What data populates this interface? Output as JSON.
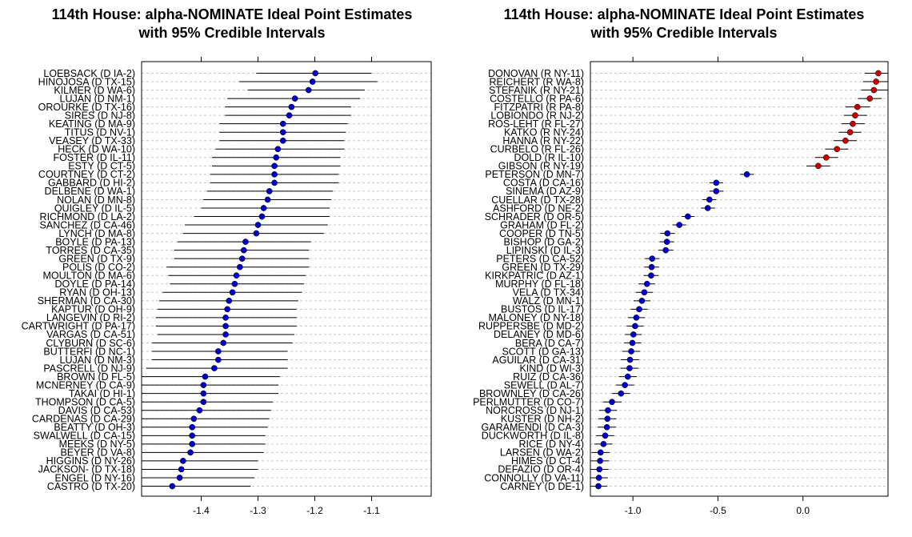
{
  "chart_data": [
    {
      "type": "scatter",
      "title_line1": "114th House: alpha-NOMINATE Ideal Point Estimates",
      "title_line2": "with 95% Credible Intervals",
      "xlim": [
        -1.505,
        -0.995
      ],
      "xticks": [
        -1.4,
        -1.3,
        -1.2,
        -1.1
      ],
      "xtick_labels": [
        "-1.4",
        "-1.3",
        "-1.2",
        "-1.1"
      ],
      "grid": "dashed horizontal",
      "points": [
        {
          "label": "LOEBSACK (D IA-2)",
          "est": -1.199,
          "lo": -1.303,
          "hi": -1.1,
          "party": "D"
        },
        {
          "label": "HINOJOSA (D TX-15)",
          "est": -1.204,
          "lo": -1.333,
          "hi": -1.09,
          "party": "D"
        },
        {
          "label": "KILMER (D WA-6)",
          "est": -1.211,
          "lo": -1.318,
          "hi": -1.112,
          "party": "D"
        },
        {
          "label": "LUJAN (D NM-1)",
          "est": -1.235,
          "lo": -1.354,
          "hi": -1.12,
          "party": "D"
        },
        {
          "label": "OROURKE (D TX-16)",
          "est": -1.241,
          "lo": -1.358,
          "hi": -1.136,
          "party": "D"
        },
        {
          "label": "SIRES (D NJ-8)",
          "est": -1.245,
          "lo": -1.358,
          "hi": -1.136,
          "party": "D"
        },
        {
          "label": "KEATING (D MA-9)",
          "est": -1.256,
          "lo": -1.368,
          "hi": -1.142,
          "party": "D"
        },
        {
          "label": "TITUS (D NV-1)",
          "est": -1.256,
          "lo": -1.368,
          "hi": -1.145,
          "party": "D"
        },
        {
          "label": "VEASEY (D TX-33)",
          "est": -1.256,
          "lo": -1.368,
          "hi": -1.148,
          "party": "D"
        },
        {
          "label": "HECK (D WA-10)",
          "est": -1.265,
          "lo": -1.375,
          "hi": -1.148,
          "party": "D"
        },
        {
          "label": "FOSTER (D IL-11)",
          "est": -1.268,
          "lo": -1.381,
          "hi": -1.155,
          "party": "D"
        },
        {
          "label": "ESTY (D CT-5)",
          "est": -1.271,
          "lo": -1.381,
          "hi": -1.155,
          "party": "D"
        },
        {
          "label": "COURTNEY (D CT-2)",
          "est": -1.271,
          "lo": -1.384,
          "hi": -1.158,
          "party": "D"
        },
        {
          "label": "GABBARD (D HI-2)",
          "est": -1.271,
          "lo": -1.384,
          "hi": -1.158,
          "party": "D"
        },
        {
          "label": "DELBENE (D WA-1)",
          "est": -1.28,
          "lo": -1.39,
          "hi": -1.168,
          "party": "D"
        },
        {
          "label": "NOLAN (D MN-8)",
          "est": -1.283,
          "lo": -1.397,
          "hi": -1.171,
          "party": "D"
        },
        {
          "label": "QUIGLEY (D IL-5)",
          "est": -1.29,
          "lo": -1.4,
          "hi": -1.174,
          "party": "D"
        },
        {
          "label": "RICHMOND (D LA-2)",
          "est": -1.293,
          "lo": -1.413,
          "hi": -1.174,
          "party": "D"
        },
        {
          "label": "SANCHEZ (D CA-46)",
          "est": -1.3,
          "lo": -1.429,
          "hi": -1.177,
          "party": "D"
        },
        {
          "label": "LYNCH (D MA-8)",
          "est": -1.303,
          "lo": -1.432,
          "hi": -1.184,
          "party": "D"
        },
        {
          "label": "BOYLE (D PA-13)",
          "est": -1.322,
          "lo": -1.442,
          "hi": -1.207,
          "party": "D"
        },
        {
          "label": "TORRES (D CA-35)",
          "est": -1.325,
          "lo": -1.448,
          "hi": -1.21,
          "party": "D"
        },
        {
          "label": "GREEN (D TX-9)",
          "est": -1.328,
          "lo": -1.448,
          "hi": -1.21,
          "party": "D"
        },
        {
          "label": "POLIS (D CO-2)",
          "est": -1.332,
          "lo": -1.461,
          "hi": -1.21,
          "party": "D"
        },
        {
          "label": "MOULTON (D MA-6)",
          "est": -1.338,
          "lo": -1.458,
          "hi": -1.216,
          "party": "D"
        },
        {
          "label": "DOYLE (D PA-14)",
          "est": -1.341,
          "lo": -1.455,
          "hi": -1.219,
          "party": "D"
        },
        {
          "label": "RYAN (D OH-13)",
          "est": -1.345,
          "lo": -1.468,
          "hi": -1.223,
          "party": "D"
        },
        {
          "label": "SHERMAN (D CA-30)",
          "est": -1.351,
          "lo": -1.474,
          "hi": -1.229,
          "party": "D"
        },
        {
          "label": "KAPTUR (D OH-9)",
          "est": -1.354,
          "lo": -1.477,
          "hi": -1.232,
          "party": "D"
        },
        {
          "label": "LANGEVIN (D RI-2)",
          "est": -1.357,
          "lo": -1.48,
          "hi": -1.232,
          "party": "D"
        },
        {
          "label": "CARTWRIGHT (D PA-17)",
          "est": -1.357,
          "lo": -1.48,
          "hi": -1.232,
          "party": "D"
        },
        {
          "label": "VARGAS (D CA-51)",
          "est": -1.357,
          "lo": -1.477,
          "hi": -1.236,
          "party": "D"
        },
        {
          "label": "CLYBURN (D SC-6)",
          "est": -1.361,
          "lo": -1.487,
          "hi": -1.239,
          "party": "D"
        },
        {
          "label": "BUTTERFI (D NC-1)",
          "est": -1.37,
          "lo": -1.487,
          "hi": -1.248,
          "party": "D"
        },
        {
          "label": "LUJAN (D NM-3)",
          "est": -1.37,
          "lo": -1.487,
          "hi": -1.248,
          "party": "D"
        },
        {
          "label": "PASCRELL (D NJ-9)",
          "est": -1.377,
          "lo": -1.497,
          "hi": -1.248,
          "party": "D"
        },
        {
          "label": "BROWN (D FL-5)",
          "est": -1.393,
          "lo": -1.506,
          "hi": -1.261,
          "party": "D"
        },
        {
          "label": "MCNERNEY (D CA-9)",
          "est": -1.396,
          "lo": -1.506,
          "hi": -1.264,
          "party": "D"
        },
        {
          "label": "TAKAI (D HI-1)",
          "est": -1.396,
          "lo": -1.506,
          "hi": -1.264,
          "party": "D"
        },
        {
          "label": "THOMPSON (D CA-5)",
          "est": -1.396,
          "lo": -1.506,
          "hi": -1.274,
          "party": "D"
        },
        {
          "label": "DAVIS (D CA-53)",
          "est": -1.403,
          "lo": -1.506,
          "hi": -1.277,
          "party": "D"
        },
        {
          "label": "CARDENAS (D CA-29)",
          "est": -1.413,
          "lo": -1.506,
          "hi": -1.28,
          "party": "D"
        },
        {
          "label": "BEATTY (D OH-3)",
          "est": -1.416,
          "lo": -1.506,
          "hi": -1.283,
          "party": "D"
        },
        {
          "label": "SWALWELL (D CA-15)",
          "est": -1.416,
          "lo": -1.506,
          "hi": -1.287,
          "party": "D"
        },
        {
          "label": "MEEKS (D NY-5)",
          "est": -1.416,
          "lo": -1.506,
          "hi": -1.287,
          "party": "D"
        },
        {
          "label": "BEYER (D VA-8)",
          "est": -1.419,
          "lo": -1.506,
          "hi": -1.29,
          "party": "D"
        },
        {
          "label": "HIGGINS (D NY-26)",
          "est": -1.432,
          "lo": -1.506,
          "hi": -1.3,
          "party": "D"
        },
        {
          "label": "JACKSON- (D TX-18)",
          "est": -1.435,
          "lo": -1.506,
          "hi": -1.3,
          "party": "D"
        },
        {
          "label": "ENGEL (D NY-16)",
          "est": -1.438,
          "lo": -1.506,
          "hi": -1.306,
          "party": "D"
        },
        {
          "label": "CASTRO (D TX-20)",
          "est": -1.451,
          "lo": -1.506,
          "hi": -1.313,
          "party": "D"
        }
      ]
    },
    {
      "type": "scatter",
      "title_line1": "114th House: alpha-NOMINATE Ideal Point Estimates",
      "title_line2": "with 95% Credible Intervals",
      "xlim": [
        -1.25,
        0.5
      ],
      "xticks": [
        -1.0,
        -0.5,
        0.0
      ],
      "xtick_labels": [
        "-1.0",
        "-0.5",
        "0.0"
      ],
      "grid": "dashed horizontal",
      "points": [
        {
          "label": "DONOVAN (R NY-11)",
          "est": 0.443,
          "lo": 0.363,
          "hi": 0.503,
          "party": "R"
        },
        {
          "label": "REICHERT (R WA-8)",
          "est": 0.43,
          "lo": 0.353,
          "hi": 0.503,
          "party": "R"
        },
        {
          "label": "STEFANIK (R NY-21)",
          "est": 0.417,
          "lo": 0.343,
          "hi": 0.503,
          "party": "R"
        },
        {
          "label": "COSTELLO (R PA-6)",
          "est": 0.393,
          "lo": 0.323,
          "hi": 0.463,
          "party": "R"
        },
        {
          "label": "FITZPATRI (R PA-8)",
          "est": 0.32,
          "lo": 0.25,
          "hi": 0.393,
          "party": "R"
        },
        {
          "label": "LOBIONDO (R NJ-2)",
          "est": 0.307,
          "lo": 0.24,
          "hi": 0.377,
          "party": "R"
        },
        {
          "label": "ROS-LEHT (R FL-27)",
          "est": 0.293,
          "lo": 0.227,
          "hi": 0.363,
          "party": "R"
        },
        {
          "label": "KATKO (R NY-24)",
          "est": 0.277,
          "lo": 0.21,
          "hi": 0.343,
          "party": "R"
        },
        {
          "label": "HANNA (R NY-22)",
          "est": 0.25,
          "lo": 0.18,
          "hi": 0.317,
          "party": "R"
        },
        {
          "label": "CURBELO (R FL-26)",
          "est": 0.2,
          "lo": 0.13,
          "hi": 0.267,
          "party": "R"
        },
        {
          "label": "DOLD (R IL-10)",
          "est": 0.137,
          "lo": 0.07,
          "hi": 0.207,
          "party": "R"
        },
        {
          "label": "GIBSON (R NY-19)",
          "est": 0.09,
          "lo": 0.02,
          "hi": 0.16,
          "party": "R"
        },
        {
          "label": "PETERSON (D MN-7)",
          "est": -0.33,
          "lo": -0.37,
          "hi": -0.29,
          "party": "D"
        },
        {
          "label": "COSTA (D CA-16)",
          "est": -0.51,
          "lo": -0.55,
          "hi": -0.47,
          "party": "D"
        },
        {
          "label": "SINEMA (D AZ-9)",
          "est": -0.51,
          "lo": -0.55,
          "hi": -0.467,
          "party": "D"
        },
        {
          "label": "CUELLAR (D TX-28)",
          "est": -0.55,
          "lo": -0.59,
          "hi": -0.51,
          "party": "D"
        },
        {
          "label": "ASHFORD (D NE-2)",
          "est": -0.56,
          "lo": -0.6,
          "hi": -0.517,
          "party": "D"
        },
        {
          "label": "SCHRADER (D OR-5)",
          "est": -0.677,
          "lo": -0.713,
          "hi": -0.637,
          "party": "D"
        },
        {
          "label": "GRAHAM (D FL-2)",
          "est": -0.727,
          "lo": -0.767,
          "hi": -0.687,
          "party": "D"
        },
        {
          "label": "COOPER (D TN-5)",
          "est": -0.797,
          "lo": -0.84,
          "hi": -0.753,
          "party": "D"
        },
        {
          "label": "BISHOP (D GA-2)",
          "est": -0.8,
          "lo": -0.843,
          "hi": -0.757,
          "party": "D"
        },
        {
          "label": "LIPINSKI (D IL-3)",
          "est": -0.807,
          "lo": -0.85,
          "hi": -0.763,
          "party": "D"
        },
        {
          "label": "PETERS (D CA-52)",
          "est": -0.887,
          "lo": -0.93,
          "hi": -0.843,
          "party": "D"
        },
        {
          "label": "GREEN (D TX-29)",
          "est": -0.89,
          "lo": -0.933,
          "hi": -0.847,
          "party": "D"
        },
        {
          "label": "KIRKPATRIC (D AZ-1)",
          "est": -0.893,
          "lo": -0.937,
          "hi": -0.85,
          "party": "D"
        },
        {
          "label": "MURPHY (D FL-18)",
          "est": -0.917,
          "lo": -0.967,
          "hi": -0.87,
          "party": "D"
        },
        {
          "label": "VELA (D TX-34)",
          "est": -0.933,
          "lo": -0.983,
          "hi": -0.883,
          "party": "D"
        },
        {
          "label": "WALZ (D MN-1)",
          "est": -0.947,
          "lo": -0.997,
          "hi": -0.897,
          "party": "D"
        },
        {
          "label": "BUSTOS (D IL-17)",
          "est": -0.963,
          "lo": -1.013,
          "hi": -0.913,
          "party": "D"
        },
        {
          "label": "MALONEY (D NY-18)",
          "est": -0.98,
          "lo": -1.03,
          "hi": -0.93,
          "party": "D"
        },
        {
          "label": "RUPPERSBE (D MD-2)",
          "est": -0.987,
          "lo": -1.037,
          "hi": -0.937,
          "party": "D"
        },
        {
          "label": "DELANEY (D MD-6)",
          "est": -0.997,
          "lo": -1.047,
          "hi": -0.947,
          "party": "D"
        },
        {
          "label": "BERA (D CA-7)",
          "est": -1.003,
          "lo": -1.053,
          "hi": -0.95,
          "party": "D"
        },
        {
          "label": "SCOTT (D GA-13)",
          "est": -1.01,
          "lo": -1.063,
          "hi": -0.957,
          "party": "D"
        },
        {
          "label": "AGUILAR (D CA-31)",
          "est": -1.017,
          "lo": -1.07,
          "hi": -0.963,
          "party": "D"
        },
        {
          "label": "KIND (D WI-3)",
          "est": -1.02,
          "lo": -1.073,
          "hi": -0.967,
          "party": "D"
        },
        {
          "label": "RUIZ (D CA-36)",
          "est": -1.03,
          "lo": -1.083,
          "hi": -0.977,
          "party": "D"
        },
        {
          "label": "SEWELL (D AL-7)",
          "est": -1.047,
          "lo": -1.1,
          "hi": -0.993,
          "party": "D"
        },
        {
          "label": "BROWNLEY (D CA-26)",
          "est": -1.07,
          "lo": -1.123,
          "hi": -1.017,
          "party": "D"
        },
        {
          "label": "PERLMUTTER (D CO-7)",
          "est": -1.123,
          "lo": -1.177,
          "hi": -1.067,
          "party": "D"
        },
        {
          "label": "NORCROSS (D NJ-1)",
          "est": -1.147,
          "lo": -1.2,
          "hi": -1.093,
          "party": "D"
        },
        {
          "label": "KUSTER (D NH-2)",
          "est": -1.15,
          "lo": -1.203,
          "hi": -1.097,
          "party": "D"
        },
        {
          "label": "GARAMENDI (D CA-3)",
          "est": -1.153,
          "lo": -1.207,
          "hi": -1.1,
          "party": "D"
        },
        {
          "label": "DUCKWORTH (D IL-8)",
          "est": -1.163,
          "lo": -1.217,
          "hi": -1.11,
          "party": "D"
        },
        {
          "label": "RICE (D NY-4)",
          "est": -1.173,
          "lo": -1.227,
          "hi": -1.12,
          "party": "D"
        },
        {
          "label": "LARSEN (D WA-2)",
          "est": -1.19,
          "lo": -1.243,
          "hi": -1.137,
          "party": "D"
        },
        {
          "label": "HIMES (D CT-4)",
          "est": -1.193,
          "lo": -1.247,
          "hi": -1.14,
          "party": "D"
        },
        {
          "label": "DEFAZIO (D OR-4)",
          "est": -1.197,
          "lo": -1.25,
          "hi": -1.143,
          "party": "D"
        },
        {
          "label": "CONNOLLY (D VA-11)",
          "est": -1.2,
          "lo": -1.25,
          "hi": -1.147,
          "party": "D"
        },
        {
          "label": "CARNEY (D DE-1)",
          "est": -1.203,
          "lo": -1.25,
          "hi": -1.15,
          "party": "D"
        }
      ]
    }
  ],
  "colors": {
    "democrat": "#0000cc",
    "republican": "#cc0000",
    "interval": "#000000",
    "grid": "#c8c8c8"
  }
}
